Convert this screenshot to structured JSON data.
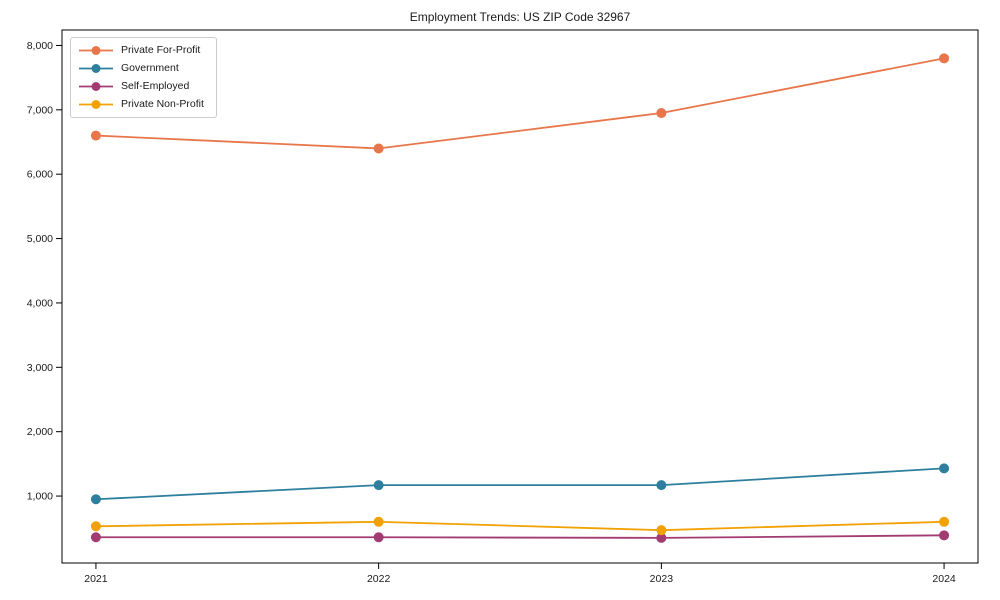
{
  "chart_data": {
    "type": "line",
    "title": "Employment Trends: US ZIP Code 32967",
    "categories": [
      2021,
      2022,
      2023,
      2024
    ],
    "xtick_labels": [
      "2021",
      "2022",
      "2023",
      "2024"
    ],
    "ytick_values": [
      1000,
      2000,
      3000,
      4000,
      5000,
      6000,
      7000,
      8000
    ],
    "ytick_labels": [
      "1,000",
      "2,000",
      "3,000",
      "4,000",
      "5,000",
      "6,000",
      "7,000",
      "8,000"
    ],
    "series": [
      {
        "name": "Private For-Profit",
        "color": "#E8764A",
        "values": [
          6600,
          6400,
          6950,
          7800
        ]
      },
      {
        "name": "Government",
        "color": "#2E7F9E",
        "values": [
          950,
          1170,
          1170,
          1430
        ]
      },
      {
        "name": "Self-Employed",
        "color": "#A23B72",
        "values": [
          360,
          360,
          350,
          390
        ]
      },
      {
        "name": "Private Non-Profit",
        "color": "#F2A104",
        "values": [
          530,
          600,
          470,
          600
        ]
      }
    ],
    "xlabel": "",
    "ylabel": "",
    "xlim": [
      2020.88,
      2024.12
    ],
    "ylim": [
      -40,
      8240
    ],
    "grid": false,
    "legend_position": "upper left",
    "marker": "circle",
    "axis_color": "#000000",
    "text_color": "#1a1a1a",
    "background": "#ffffff"
  }
}
